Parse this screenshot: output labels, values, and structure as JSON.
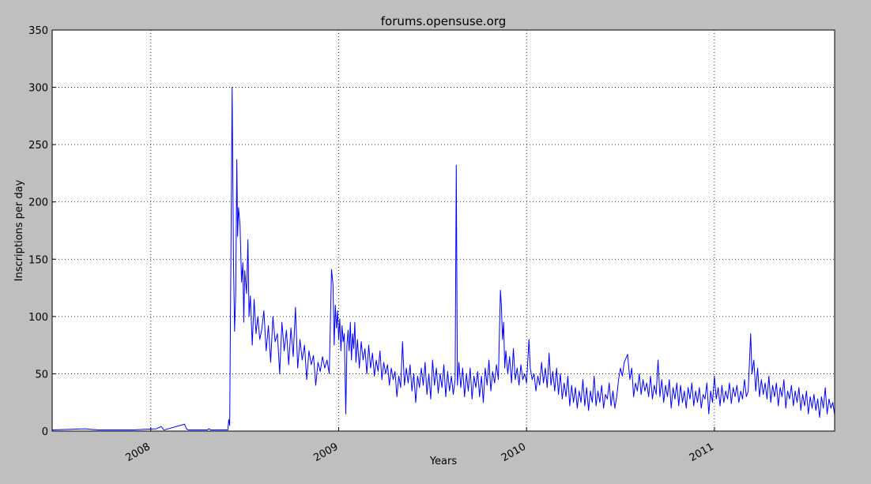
{
  "chart_data": {
    "type": "line",
    "title": "forums.opensuse.org",
    "xlabel": "Years",
    "ylabel": "Inscriptions per day",
    "color": "#0000ff",
    "grid": true,
    "xlim": [
      2007.475,
      2011.64
    ],
    "xticks": [
      2008,
      2009,
      2010,
      2011
    ],
    "ylim": [
      0,
      350
    ],
    "yticks": [
      0,
      50,
      100,
      150,
      200,
      250,
      300,
      350
    ],
    "x": [
      2007.475,
      2007.65,
      2007.72,
      2007.9,
      2008.03,
      2008.055,
      2008.07,
      2008.18,
      2008.19,
      2008.2,
      2008.3,
      2008.31,
      2008.32,
      2008.41,
      2008.415,
      2008.42,
      2008.425,
      2008.433,
      2008.44,
      2008.446,
      2008.452,
      2008.458,
      2008.462,
      2008.467,
      2008.475,
      2008.483,
      2008.49,
      2008.495,
      2008.5,
      2008.51,
      2008.517,
      2008.523,
      2008.53,
      2008.54,
      2008.55,
      2008.56,
      2008.57,
      2008.58,
      2008.59,
      2008.602,
      2008.614,
      2008.626,
      2008.638,
      2008.65,
      2008.662,
      2008.674,
      2008.686,
      2008.698,
      2008.71,
      2008.722,
      2008.734,
      2008.746,
      2008.758,
      2008.77,
      2008.782,
      2008.794,
      2008.806,
      2008.818,
      2008.83,
      2008.842,
      2008.854,
      2008.866,
      2008.878,
      2008.89,
      2008.902,
      2008.914,
      2008.926,
      2008.938,
      2008.95,
      2008.962,
      2008.97,
      2008.976,
      2008.982,
      2008.988,
      2008.994,
      2009.0,
      2009.006,
      2009.012,
      2009.018,
      2009.024,
      2009.03,
      2009.038,
      2009.044,
      2009.05,
      2009.056,
      2009.062,
      2009.068,
      2009.074,
      2009.08,
      2009.086,
      2009.092,
      2009.1,
      2009.11,
      2009.12,
      2009.13,
      2009.14,
      2009.15,
      2009.16,
      2009.17,
      2009.18,
      2009.19,
      2009.2,
      2009.21,
      2009.22,
      2009.23,
      2009.24,
      2009.25,
      2009.26,
      2009.27,
      2009.28,
      2009.29,
      2009.3,
      2009.31,
      2009.32,
      2009.33,
      2009.34,
      2009.35,
      2009.36,
      2009.37,
      2009.38,
      2009.39,
      2009.4,
      2009.41,
      2009.42,
      2009.43,
      2009.44,
      2009.45,
      2009.46,
      2009.47,
      2009.48,
      2009.49,
      2009.5,
      2009.51,
      2009.52,
      2009.53,
      2009.54,
      2009.55,
      2009.56,
      2009.57,
      2009.58,
      2009.59,
      2009.6,
      2009.61,
      2009.62,
      2009.626,
      2009.632,
      2009.64,
      2009.65,
      2009.66,
      2009.67,
      2009.68,
      2009.69,
      2009.7,
      2009.71,
      2009.72,
      2009.73,
      2009.74,
      2009.75,
      2009.76,
      2009.77,
      2009.78,
      2009.79,
      2009.8,
      2009.81,
      2009.82,
      2009.83,
      2009.84,
      2009.85,
      2009.861,
      2009.866,
      2009.872,
      2009.878,
      2009.884,
      2009.89,
      2009.9,
      2009.91,
      2009.92,
      2009.93,
      2009.94,
      2009.95,
      2009.96,
      2009.97,
      2009.98,
      2009.99,
      2010.0,
      2010.013,
      2010.02,
      2010.03,
      2010.04,
      2010.05,
      2010.06,
      2010.07,
      2010.08,
      2010.09,
      2010.1,
      2010.11,
      2010.12,
      2010.13,
      2010.14,
      2010.15,
      2010.16,
      2010.17,
      2010.18,
      2010.19,
      2010.2,
      2010.21,
      2010.22,
      2010.23,
      2010.24,
      2010.25,
      2010.26,
      2010.27,
      2010.28,
      2010.29,
      2010.3,
      2010.31,
      2010.32,
      2010.33,
      2010.34,
      2010.35,
      2010.36,
      2010.37,
      2010.38,
      2010.39,
      2010.4,
      2010.41,
      2010.42,
      2010.43,
      2010.44,
      2010.45,
      2010.46,
      2010.47,
      2010.48,
      2010.49,
      2010.5,
      2010.51,
      2010.52,
      2010.538,
      2010.55,
      2010.56,
      2010.57,
      2010.58,
      2010.59,
      2010.6,
      2010.61,
      2010.62,
      2010.63,
      2010.64,
      2010.65,
      2010.66,
      2010.67,
      2010.68,
      2010.69,
      2010.7,
      2010.71,
      2010.72,
      2010.73,
      2010.74,
      2010.75,
      2010.76,
      2010.77,
      2010.78,
      2010.79,
      2010.8,
      2010.81,
      2010.82,
      2010.83,
      2010.84,
      2010.85,
      2010.86,
      2010.87,
      2010.88,
      2010.89,
      2010.9,
      2010.91,
      2010.92,
      2010.93,
      2010.94,
      2010.95,
      2010.96,
      2010.97,
      2010.98,
      2010.99,
      2011.0,
      2011.01,
      2011.02,
      2011.03,
      2011.04,
      2011.05,
      2011.06,
      2011.07,
      2011.08,
      2011.09,
      2011.1,
      2011.11,
      2011.12,
      2011.13,
      2011.14,
      2011.15,
      2011.16,
      2011.17,
      2011.18,
      2011.193,
      2011.2,
      2011.21,
      2011.22,
      2011.23,
      2011.24,
      2011.25,
      2011.26,
      2011.27,
      2011.28,
      2011.29,
      2011.3,
      2011.31,
      2011.32,
      2011.33,
      2011.34,
      2011.35,
      2011.36,
      2011.37,
      2011.38,
      2011.39,
      2011.4,
      2011.41,
      2011.42,
      2011.43,
      2011.44,
      2011.45,
      2011.46,
      2011.47,
      2011.48,
      2011.49,
      2011.5,
      2011.51,
      2011.52,
      2011.53,
      2011.54,
      2011.55,
      2011.56,
      2011.57,
      2011.58,
      2011.59,
      2011.6,
      2011.61,
      2011.62,
      2011.63,
      2011.64
    ],
    "values": [
      1,
      2,
      1,
      1,
      2,
      4,
      1,
      6,
      2,
      1,
      1,
      2,
      1,
      1,
      10,
      5,
      120,
      300,
      150,
      87,
      120,
      237,
      170,
      195,
      180,
      130,
      147,
      95,
      140,
      120,
      167,
      100,
      118,
      75,
      115,
      85,
      100,
      80,
      88,
      105,
      70,
      92,
      60,
      100,
      78,
      85,
      50,
      95,
      70,
      88,
      58,
      90,
      65,
      108,
      55,
      80,
      62,
      75,
      45,
      70,
      58,
      66,
      40,
      60,
      52,
      65,
      55,
      62,
      50,
      141,
      128,
      75,
      110,
      90,
      105,
      80,
      98,
      70,
      92,
      78,
      85,
      15,
      75,
      88,
      70,
      95,
      62,
      85,
      72,
      95,
      60,
      80,
      55,
      78,
      62,
      72,
      50,
      75,
      55,
      68,
      48,
      62,
      52,
      70,
      45,
      60,
      50,
      58,
      40,
      55,
      45,
      52,
      30,
      48,
      38,
      78,
      40,
      55,
      42,
      58,
      35,
      50,
      25,
      48,
      38,
      55,
      40,
      60,
      32,
      50,
      28,
      62,
      40,
      55,
      33,
      50,
      38,
      58,
      30,
      52,
      35,
      48,
      32,
      45,
      232,
      40,
      60,
      38,
      55,
      30,
      50,
      35,
      55,
      28,
      48,
      38,
      52,
      30,
      48,
      25,
      55,
      40,
      62,
      35,
      52,
      42,
      58,
      45,
      123,
      110,
      80,
      95,
      55,
      70,
      50,
      65,
      42,
      72,
      45,
      55,
      40,
      58,
      45,
      50,
      42,
      80,
      55,
      45,
      50,
      35,
      48,
      40,
      60,
      42,
      55,
      38,
      68,
      40,
      52,
      35,
      55,
      32,
      50,
      28,
      42,
      30,
      48,
      22,
      40,
      25,
      38,
      20,
      35,
      25,
      45,
      22,
      38,
      18,
      35,
      25,
      48,
      22,
      35,
      25,
      40,
      20,
      32,
      28,
      42,
      22,
      35,
      20,
      30,
      45,
      55,
      48,
      60,
      67,
      45,
      55,
      30,
      42,
      35,
      50,
      32,
      45,
      35,
      42,
      30,
      48,
      28,
      40,
      32,
      62,
      30,
      45,
      25,
      40,
      30,
      45,
      20,
      38,
      28,
      42,
      22,
      40,
      25,
      35,
      20,
      38,
      28,
      42,
      22,
      35,
      25,
      38,
      20,
      32,
      28,
      42,
      15,
      35,
      25,
      48,
      28,
      38,
      22,
      40,
      25,
      35,
      28,
      42,
      24,
      38,
      30,
      40,
      25,
      35,
      28,
      45,
      30,
      35,
      85,
      50,
      62,
      35,
      55,
      30,
      45,
      32,
      42,
      28,
      48,
      25,
      40,
      30,
      42,
      22,
      38,
      30,
      45,
      20,
      35,
      28,
      40,
      22,
      35,
      25,
      38,
      18,
      32,
      22,
      35,
      15,
      30,
      20,
      32,
      18,
      28,
      12,
      30,
      20,
      38,
      15,
      28,
      20,
      25,
      14
    ]
  }
}
